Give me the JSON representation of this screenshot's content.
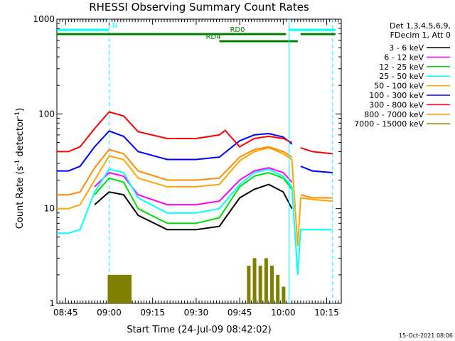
{
  "chart_data": {
    "type": "line",
    "title": "RHESSI Observing Summary Count Rates",
    "xlabel": "Start Time (24-Jul-09 08:42:02)",
    "ylabel_main": "Count Rate (s",
    "ylabel_sup1": "-1",
    "ylabel_mid": " detector",
    "ylabel_sup2": "-1",
    "ylabel_end": ")",
    "date_stamp": "15-Oct-2021 08:06",
    "yscale": "log",
    "ylim": [
      1,
      1000
    ],
    "xlim": [
      "08:42",
      "10:20"
    ],
    "x_ticks": [
      "08:45",
      "09:00",
      "09:15",
      "09:30",
      "09:45",
      "10:00",
      "10:15"
    ],
    "y_ticks": [
      "1",
      "10",
      "100",
      "1000"
    ],
    "legend_header": [
      "Det 1,3,4,5,6,9,",
      "FDecim 1, Att 0"
    ],
    "series": [
      {
        "name": "3 - 6 keV",
        "color": "#000000",
        "x": [
          "08:42",
          "08:50",
          "08:55",
          "09:00",
          "09:05",
          "09:10",
          "09:20",
          "09:30",
          "09:38",
          "09:45",
          "09:50",
          "09:55",
          "10:00",
          "10:03"
        ],
        "y": [
          null,
          null,
          11,
          15,
          14,
          8.5,
          6,
          6,
          6.5,
          13,
          16,
          18,
          15,
          10
        ]
      },
      {
        "name": "6 - 12 keV",
        "color": "#ff00ff",
        "x": [
          "08:42",
          "08:50",
          "08:55",
          "09:00",
          "09:05",
          "09:10",
          "09:20",
          "09:30",
          "09:38",
          "09:45",
          "09:50",
          "09:55",
          "10:00",
          "10:03",
          "10:05",
          "10:10",
          "10:17"
        ],
        "y": [
          null,
          null,
          17,
          24,
          22,
          14,
          11,
          11,
          12,
          20,
          25,
          27,
          24,
          19,
          null,
          null,
          null
        ]
      },
      {
        "name": "12 - 25 keV",
        "color": "#00e000",
        "x": [
          "08:42",
          "08:50",
          "08:55",
          "09:00",
          "09:05",
          "09:10",
          "09:20",
          "09:30",
          "09:38",
          "09:45",
          "09:50",
          "09:55",
          "10:00",
          "10:03"
        ],
        "y": [
          null,
          null,
          14,
          21,
          19,
          10,
          7,
          7,
          8,
          17,
          22,
          24,
          21,
          16
        ]
      },
      {
        "name": "25 - 50 keV",
        "color": "#00ffff",
        "x": [
          "08:42",
          "08:46",
          "08:50",
          "08:55",
          "09:00",
          "09:05",
          "09:10",
          "09:20",
          "09:30",
          "09:38",
          "09:45",
          "09:50",
          "09:55",
          "10:00",
          "10:03",
          "10:05",
          "10:06",
          "10:10",
          "10:17"
        ],
        "y": [
          5.5,
          5.5,
          6,
          15,
          26,
          24,
          13,
          9,
          9,
          10,
          18,
          24,
          26,
          22,
          17,
          2,
          6,
          6,
          6
        ]
      },
      {
        "name": "50 - 100 keV",
        "color": "#ffa500",
        "x": [
          "08:42",
          "08:46",
          "08:50",
          "08:55",
          "09:00",
          "09:05",
          "09:10",
          "09:20",
          "09:30",
          "09:38",
          "09:45",
          "09:50",
          "09:55",
          "10:00",
          "10:03",
          "10:05",
          "10:06",
          "10:10",
          "10:17"
        ],
        "y": [
          10,
          10,
          11,
          20,
          36,
          33,
          21,
          17,
          17,
          18,
          32,
          40,
          44,
          38,
          33,
          4,
          13,
          12.5,
          12
        ]
      },
      {
        "name": "100 - 300 keV",
        "color": "#0000ff",
        "x": [
          "08:42",
          "08:46",
          "08:50",
          "08:55",
          "09:00",
          "09:05",
          "09:10",
          "09:20",
          "09:30",
          "09:38",
          "09:45",
          "09:50",
          "09:55",
          "10:00",
          "10:03",
          "10:05",
          "10:06",
          "10:10",
          "10:17"
        ],
        "y": [
          25,
          25,
          28,
          45,
          66,
          58,
          40,
          33,
          33,
          35,
          52,
          60,
          62,
          57,
          48,
          null,
          28,
          25,
          24
        ]
      },
      {
        "name": "300 - 800 keV",
        "color": "#ff0000",
        "x": [
          "08:42",
          "08:46",
          "08:50",
          "08:55",
          "09:00",
          "09:05",
          "09:10",
          "09:20",
          "09:30",
          "09:38",
          "09:40",
          "09:45",
          "09:50",
          "09:55",
          "10:00",
          "10:03",
          "10:05",
          "10:06",
          "10:10",
          "10:17"
        ],
        "y": [
          40,
          40,
          45,
          70,
          105,
          95,
          65,
          55,
          55,
          60,
          67,
          45,
          55,
          58,
          55,
          50,
          null,
          44,
          40,
          38
        ]
      },
      {
        "name": "800 - 7000 keV",
        "color": "#ff8c00",
        "x": [
          "08:42",
          "08:46",
          "08:50",
          "08:55",
          "09:00",
          "09:05",
          "09:10",
          "09:20",
          "09:30",
          "09:38",
          "09:45",
          "09:50",
          "09:55",
          "10:00",
          "10:03",
          "10:05",
          "10:06",
          "10:10",
          "10:17"
        ],
        "y": [
          14,
          14,
          15,
          27,
          42,
          38,
          25,
          20,
          20,
          21,
          35,
          42,
          45,
          40,
          35,
          null,
          14,
          13,
          13
        ]
      },
      {
        "name": "7000 - 15000 keV",
        "color": "#808000",
        "x": [
          "09:00",
          "09:01",
          "09:02",
          "09:03",
          "09:04",
          "09:05",
          "09:06",
          "09:07",
          "09:48",
          "09:50",
          "09:52",
          "09:54",
          "09:56",
          "09:58",
          "10:00"
        ],
        "y": [
          2,
          2,
          2,
          2,
          2,
          2,
          2,
          2,
          2.5,
          3,
          2.5,
          3,
          2.5,
          2,
          1.5
        ]
      }
    ],
    "flags": [
      {
        "label": "N",
        "color": "#00ffff",
        "segments": [
          [
            "08:42",
            "09:00"
          ],
          [
            "10:02",
            "10:18"
          ]
        ]
      },
      {
        "label": "RD0",
        "color": "#008000",
        "segments": [
          [
            "08:42",
            "10:01"
          ],
          [
            "10:06",
            "10:18"
          ]
        ]
      },
      {
        "label": "RD4",
        "color": "#008000",
        "segments": [
          [
            "09:38",
            "10:05"
          ]
        ]
      }
    ],
    "markers": [
      "09:00",
      "10:02",
      "10:17"
    ],
    "legend_position": "right",
    "grid": false
  }
}
